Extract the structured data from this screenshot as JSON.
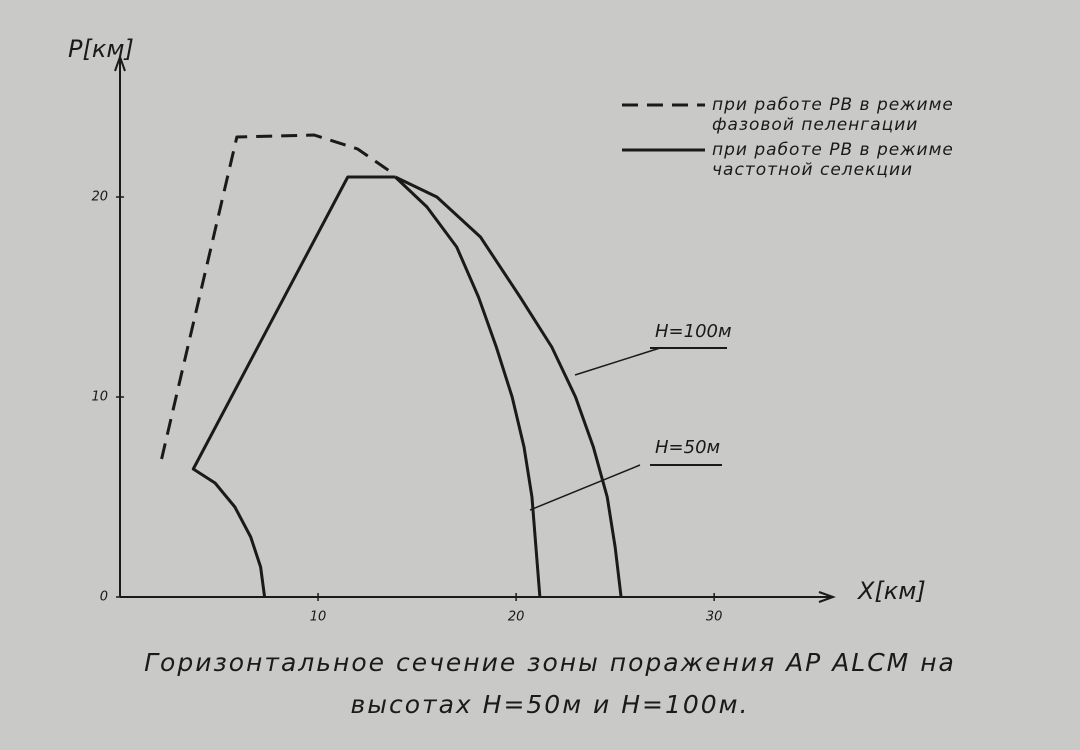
{
  "chart_data": {
    "type": "line",
    "title": "Горизонтальное сечение зоны поражения АР ALCM на высотах H=50м и H=100м.",
    "x_label": "X[км]",
    "y_label": "P[км]",
    "xlim": [
      0,
      36
    ],
    "ylim": [
      0,
      27
    ],
    "xticks": [
      10,
      20,
      30
    ],
    "yticks": [
      0,
      10,
      20
    ],
    "series": [
      {
        "name": "при работе РВ в режиме фазовой пеленгации",
        "color": "#1a1a1a",
        "dashed": true,
        "legend": true,
        "x": [
          2.1,
          5.9,
          9.8,
          12.0,
          13.9
        ],
        "values": [
          6.9,
          23.0,
          23.1,
          22.4,
          21.1
        ]
      },
      {
        "name": "при работе РВ в режиме частотной селекции",
        "color": "#1a1a1a",
        "dashed": false,
        "legend": true,
        "x": [
          7.3,
          7.1,
          6.6,
          5.8,
          4.8,
          3.7,
          11.5,
          13.9
        ],
        "values": [
          0,
          1.5,
          3,
          4.5,
          5.7,
          6.4,
          21,
          21
        ]
      },
      {
        "name": "H=50м",
        "color": "#1a1a1a",
        "dashed": false,
        "legend": false,
        "x": [
          13.9,
          15.5,
          17.0,
          18.1,
          19.0,
          19.8,
          20.4,
          20.8,
          21.0,
          21.2
        ],
        "values": [
          21,
          19.5,
          17.5,
          15,
          12.5,
          10,
          7.5,
          5,
          2.5,
          0
        ]
      },
      {
        "name": "H=100м",
        "color": "#1a1a1a",
        "dashed": false,
        "legend": false,
        "x": [
          13.9,
          16.0,
          18.2,
          20.2,
          21.8,
          23.0,
          23.9,
          24.6,
          25.0,
          25.3
        ],
        "values": [
          21,
          20,
          18,
          15,
          12.5,
          10,
          7.5,
          5,
          2.5,
          0
        ]
      }
    ]
  }
}
